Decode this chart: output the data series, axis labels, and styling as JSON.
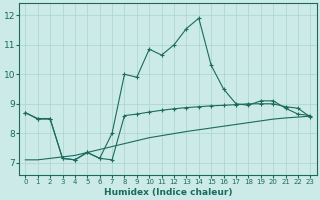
{
  "xlabel": "Humidex (Indice chaleur)",
  "background_color": "#cceae7",
  "grid_color": "#aad4d0",
  "line_color": "#1a6b5e",
  "xlim": [
    -0.5,
    23.5
  ],
  "ylim": [
    6.6,
    12.4
  ],
  "xticks": [
    0,
    1,
    2,
    3,
    4,
    5,
    6,
    7,
    8,
    9,
    10,
    11,
    12,
    13,
    14,
    15,
    16,
    17,
    18,
    19,
    20,
    21,
    22,
    23
  ],
  "yticks": [
    7,
    8,
    9,
    10,
    11,
    12
  ],
  "line1_x": [
    0,
    1,
    2,
    3,
    4,
    5,
    6,
    7,
    8,
    9,
    10,
    11,
    12,
    13,
    14,
    15,
    16,
    17,
    18,
    19,
    20,
    21,
    22,
    23
  ],
  "line1_y": [
    8.7,
    8.5,
    8.5,
    7.15,
    7.1,
    7.35,
    7.15,
    8.0,
    10.0,
    9.9,
    10.85,
    10.65,
    11.0,
    11.55,
    11.9,
    10.3,
    9.5,
    9.0,
    8.95,
    9.1,
    9.1,
    8.85,
    8.65,
    8.6
  ],
  "line2_x": [
    0,
    1,
    2,
    3,
    4,
    5,
    6,
    7,
    8,
    9,
    10,
    11,
    12,
    13,
    14,
    15,
    16,
    17,
    18,
    19,
    20,
    21,
    22,
    23
  ],
  "line2_y": [
    8.7,
    8.48,
    8.48,
    7.15,
    7.1,
    7.35,
    7.15,
    7.1,
    8.6,
    8.65,
    8.72,
    8.78,
    8.83,
    8.87,
    8.9,
    8.93,
    8.95,
    8.97,
    9.0,
    9.0,
    9.0,
    8.9,
    8.85,
    8.55
  ],
  "line3_x": [
    0,
    1,
    2,
    3,
    4,
    5,
    6,
    7,
    8,
    9,
    10,
    11,
    12,
    13,
    14,
    15,
    16,
    17,
    18,
    19,
    20,
    21,
    22,
    23
  ],
  "line3_y": [
    7.1,
    7.1,
    7.15,
    7.2,
    7.25,
    7.35,
    7.45,
    7.55,
    7.65,
    7.75,
    7.85,
    7.92,
    7.99,
    8.06,
    8.12,
    8.18,
    8.24,
    8.3,
    8.36,
    8.42,
    8.48,
    8.52,
    8.55,
    8.58
  ]
}
